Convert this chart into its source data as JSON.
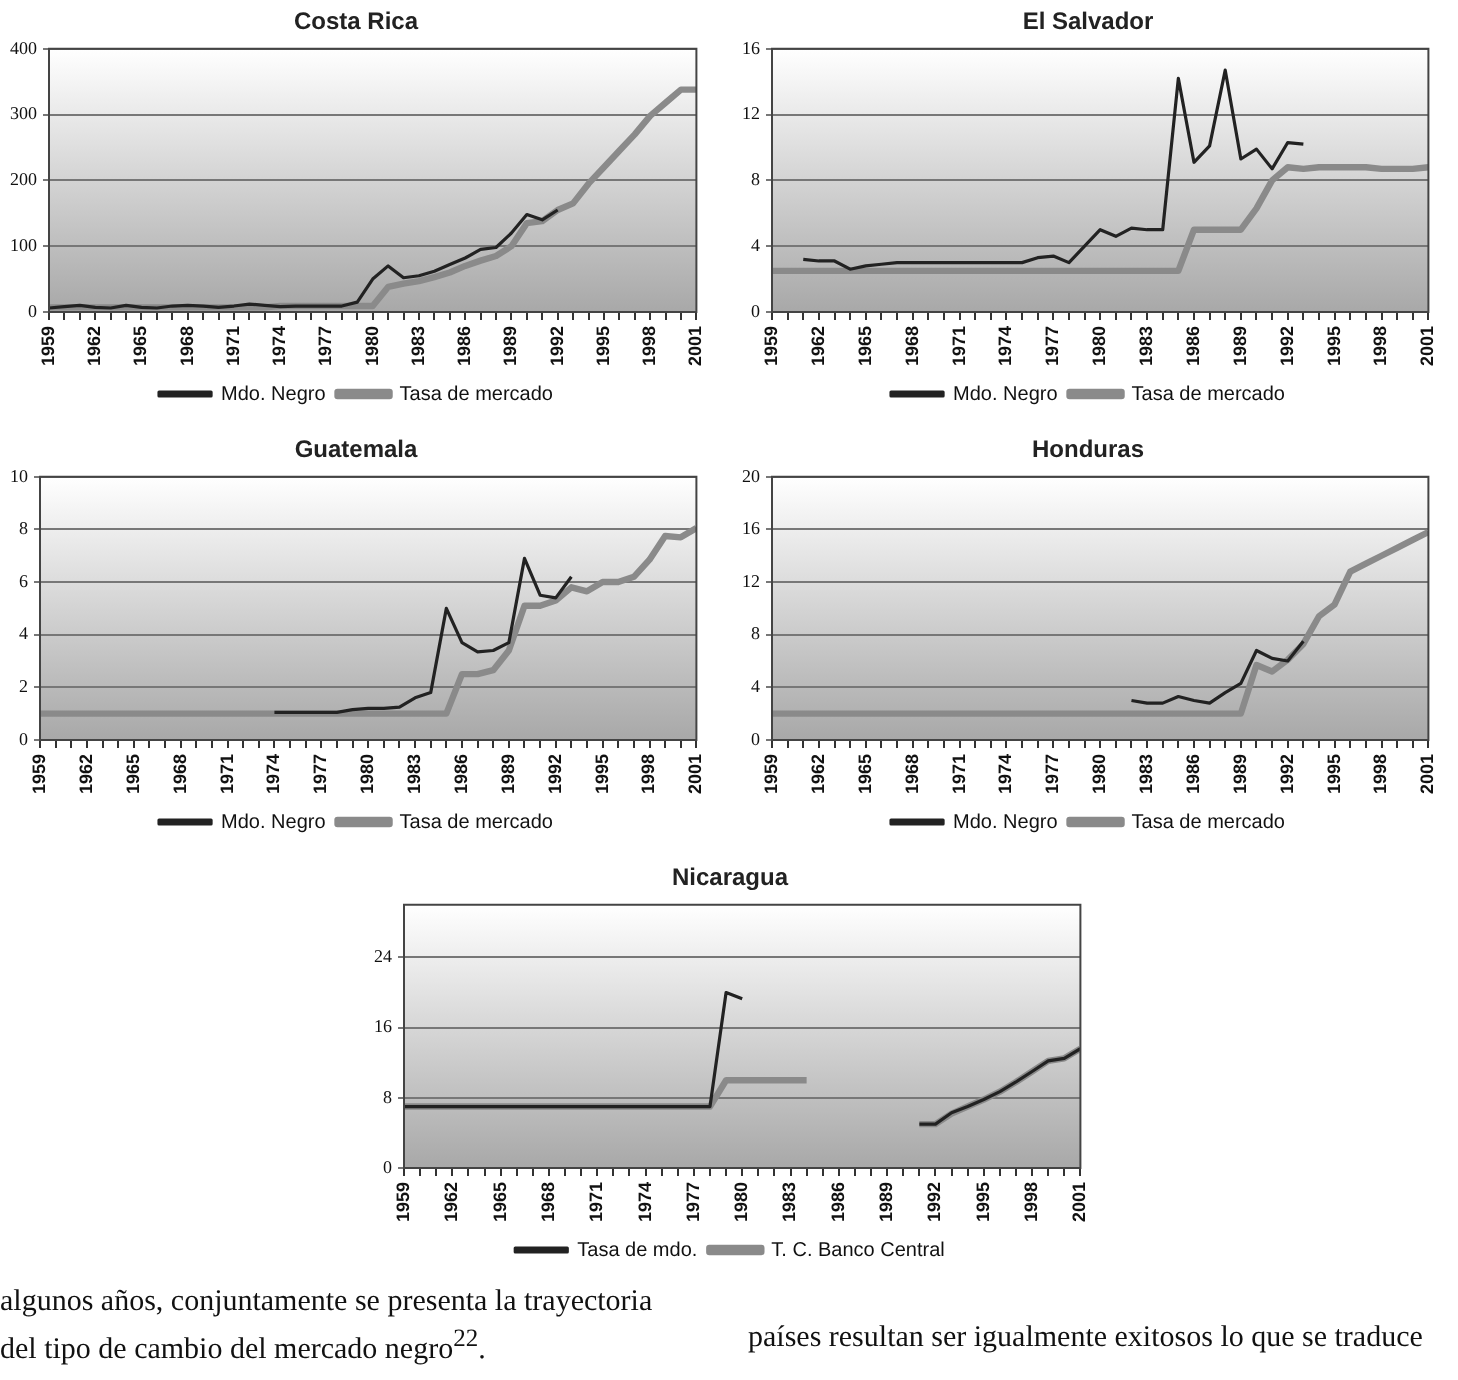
{
  "chart_data": [
    {
      "type": "line",
      "title": "Costa Rica",
      "categories": [
        "1959",
        null,
        null,
        "1962",
        null,
        null,
        "1965",
        null,
        null,
        "1968",
        null,
        null,
        "1971",
        null,
        null,
        "1974",
        null,
        null,
        "1977",
        null,
        null,
        "1980",
        null,
        null,
        "1983",
        null,
        null,
        "1986",
        null,
        null,
        "1989",
        null,
        null,
        "1992",
        null,
        null,
        "1995",
        null,
        null,
        "1998",
        null,
        null,
        "2001"
      ],
      "series": [
        {
          "name": "Mdo. Negro",
          "color": "#222222",
          "values": [
            6,
            8,
            10,
            7,
            6,
            10,
            7,
            6,
            9,
            10,
            9,
            7,
            9,
            12,
            10,
            8,
            9,
            9,
            9,
            9,
            15,
            50,
            70,
            52,
            55,
            62,
            72,
            82,
            95,
            98,
            120,
            148,
            140,
            155,
            null,
            null,
            null,
            null,
            null,
            null,
            null,
            null,
            null
          ]
        },
        {
          "name": "Tasa de mercado",
          "color": "#8a8a8a",
          "values": [
            7,
            7,
            7,
            7,
            7,
            7,
            7,
            7,
            7,
            7,
            7,
            7,
            7,
            7,
            7,
            9,
            9,
            9,
            9,
            9,
            9,
            9,
            38,
            43,
            47,
            53,
            60,
            70,
            78,
            85,
            100,
            135,
            138,
            155,
            165,
            195,
            220,
            245,
            270,
            298,
            318,
            338,
            338
          ]
        }
      ],
      "ylim": [
        0,
        400
      ],
      "yticks": [
        0,
        100,
        200,
        300,
        400
      ],
      "grid": "y",
      "legend": "bottom",
      "marker": "none",
      "line_style": "solid"
    },
    {
      "type": "line",
      "title": "El Salvador",
      "categories": [
        "1959",
        null,
        null,
        "1962",
        null,
        null,
        "1965",
        null,
        null,
        "1968",
        null,
        null,
        "1971",
        null,
        null,
        "1974",
        null,
        null,
        "1977",
        null,
        null,
        "1980",
        null,
        null,
        "1983",
        null,
        null,
        "1986",
        null,
        null,
        "1989",
        null,
        null,
        "1992",
        null,
        null,
        "1995",
        null,
        null,
        "1998",
        null,
        null,
        "2001"
      ],
      "series": [
        {
          "name": "Mdo. Negro",
          "color": "#222222",
          "values": [
            null,
            null,
            3.2,
            3.1,
            3.1,
            2.6,
            2.8,
            2.9,
            3,
            3,
            3,
            3,
            3,
            3,
            3,
            3,
            3,
            3.3,
            3.4,
            3,
            4,
            5,
            4.6,
            5.1,
            5,
            5,
            14.2,
            9.1,
            10.1,
            14.7,
            9.3,
            9.9,
            8.7,
            10.3,
            10.2,
            null,
            null,
            null,
            null,
            null,
            null,
            null,
            null
          ]
        },
        {
          "name": "Tasa de mercado",
          "color": "#8a8a8a",
          "values": [
            2.5,
            2.5,
            2.5,
            2.5,
            2.5,
            2.5,
            2.5,
            2.5,
            2.5,
            2.5,
            2.5,
            2.5,
            2.5,
            2.5,
            2.5,
            2.5,
            2.5,
            2.5,
            2.5,
            2.5,
            2.5,
            2.5,
            2.5,
            2.5,
            2.5,
            2.5,
            2.5,
            5,
            5,
            5,
            5,
            6.3,
            8,
            8.8,
            8.7,
            8.8,
            8.8,
            8.8,
            8.8,
            8.7,
            8.7,
            8.7,
            8.8
          ]
        }
      ],
      "ylim": [
        0,
        16
      ],
      "yticks": [
        0,
        4,
        8,
        12,
        16
      ],
      "grid": "y",
      "legend": "bottom",
      "marker": "none",
      "line_style": "solid"
    },
    {
      "type": "line",
      "title": "Guatemala",
      "categories": [
        "1959",
        null,
        null,
        "1962",
        null,
        null,
        "1965",
        null,
        null,
        "1968",
        null,
        null,
        "1971",
        null,
        null,
        "1974",
        null,
        null,
        "1977",
        null,
        null,
        "1980",
        null,
        null,
        "1983",
        null,
        null,
        "1986",
        null,
        null,
        "1989",
        null,
        null,
        "1992",
        null,
        null,
        "1995",
        null,
        null,
        "1998",
        null,
        null,
        "2001"
      ],
      "series": [
        {
          "name": "Mdo. Negro",
          "color": "#222222",
          "values": [
            null,
            null,
            null,
            null,
            null,
            null,
            null,
            null,
            null,
            null,
            null,
            null,
            null,
            null,
            null,
            1.05,
            1.05,
            1.05,
            1.05,
            1.05,
            1.15,
            1.2,
            1.2,
            1.25,
            1.6,
            1.8,
            5,
            3.7,
            3.35,
            3.4,
            3.7,
            6.9,
            5.5,
            5.4,
            6.2,
            null,
            null,
            null,
            null,
            null,
            null,
            null,
            null
          ]
        },
        {
          "name": "Tasa de mercado",
          "color": "#8a8a8a",
          "values": [
            1,
            1,
            1,
            1,
            1,
            1,
            1,
            1,
            1,
            1,
            1,
            1,
            1,
            1,
            1,
            1,
            1,
            1,
            1,
            1,
            1,
            1,
            1,
            1,
            1,
            1,
            1,
            2.5,
            2.5,
            2.65,
            3.4,
            5.1,
            5.1,
            5.3,
            5.8,
            5.65,
            6,
            6,
            6.2,
            6.85,
            7.75,
            7.7,
            8.05
          ]
        }
      ],
      "ylim": [
        0,
        10
      ],
      "yticks": [
        0,
        2,
        4,
        6,
        8,
        10
      ],
      "grid": "y",
      "legend": "bottom",
      "marker": "none",
      "line_style": "solid"
    },
    {
      "type": "line",
      "title": "Honduras",
      "categories": [
        "1959",
        null,
        null,
        "1962",
        null,
        null,
        "1965",
        null,
        null,
        "1968",
        null,
        null,
        "1971",
        null,
        null,
        "1974",
        null,
        null,
        "1977",
        null,
        null,
        "1980",
        null,
        null,
        "1983",
        null,
        null,
        "1986",
        null,
        null,
        "1989",
        null,
        null,
        "1992",
        null,
        null,
        "1995",
        null,
        null,
        "1998",
        null,
        null,
        "2001"
      ],
      "series": [
        {
          "name": "Mdo. Negro",
          "color": "#222222",
          "values": [
            null,
            null,
            null,
            null,
            null,
            null,
            null,
            null,
            null,
            null,
            null,
            null,
            null,
            null,
            null,
            null,
            null,
            null,
            null,
            null,
            null,
            null,
            null,
            3,
            2.8,
            2.8,
            3.3,
            3,
            2.8,
            3.6,
            4.3,
            6.8,
            6.2,
            6,
            7.5,
            null,
            null,
            null,
            null,
            null,
            null,
            null,
            null
          ]
        },
        {
          "name": "Tasa de mercado",
          "color": "#8a8a8a",
          "values": [
            2,
            2,
            2,
            2,
            2,
            2,
            2,
            2,
            2,
            2,
            2,
            2,
            2,
            2,
            2,
            2,
            2,
            2,
            2,
            2,
            2,
            2,
            2,
            2,
            2,
            2,
            2,
            2,
            2,
            2,
            2,
            5.7,
            5.2,
            6.1,
            7.3,
            9.4,
            10.3,
            12.8,
            13.4,
            14,
            14.6,
            15.2,
            15.8
          ]
        }
      ],
      "ylim": [
        0,
        20
      ],
      "yticks": [
        0,
        4,
        8,
        12,
        16,
        20
      ],
      "grid": "y",
      "legend": "bottom",
      "marker": "none",
      "line_style": "solid"
    },
    {
      "type": "line",
      "title": "Nicaragua",
      "categories": [
        "1959",
        null,
        null,
        "1962",
        null,
        null,
        "1965",
        null,
        null,
        "1968",
        null,
        null,
        "1971",
        null,
        null,
        "1974",
        null,
        null,
        "1977",
        null,
        null,
        "1980",
        null,
        null,
        "1983",
        null,
        null,
        "1986",
        null,
        null,
        "1989",
        null,
        null,
        "1992",
        null,
        null,
        "1995",
        null,
        null,
        "1998",
        null,
        null,
        "2001"
      ],
      "series": [
        {
          "name": "Tasa de mdo.",
          "color": "#222222",
          "values": [
            7,
            7,
            7,
            7,
            7,
            7,
            7,
            7,
            7,
            7,
            7,
            7,
            7,
            7,
            7,
            7,
            7,
            7,
            7,
            7,
            20,
            19.3,
            null,
            null,
            null,
            null,
            null,
            null,
            null,
            null,
            null,
            null,
            5,
            5,
            6.3,
            7,
            7.8,
            8.7,
            9.8,
            11,
            12.2,
            12.5,
            13.6
          ]
        },
        {
          "name": "T. C. Banco Central",
          "color": "#8a8a8a",
          "values": [
            7,
            7,
            7,
            7,
            7,
            7,
            7,
            7,
            7,
            7,
            7,
            7,
            7,
            7,
            7,
            7,
            7,
            7,
            7,
            7,
            10,
            10,
            10,
            10,
            10,
            10,
            null,
            null,
            null,
            null,
            null,
            null,
            5,
            5,
            6.2,
            7,
            7.8,
            8.7,
            9.8,
            11,
            12.2,
            12.5,
            13.6
          ]
        }
      ],
      "ylim": [
        0,
        30
      ],
      "yticks": [
        0,
        8,
        16,
        24
      ],
      "grid": "y",
      "legend": "bottom",
      "marker": "none",
      "line_style": "solid",
      "annotations": [
        "algunos años, conjuntamente se presenta la trayectoria",
        "del tipo de cambio del mercado negro$^{22}$.",
        "países resultan ser igualmente exitosos lo que se traduce"
      ]
    }
  ]
}
